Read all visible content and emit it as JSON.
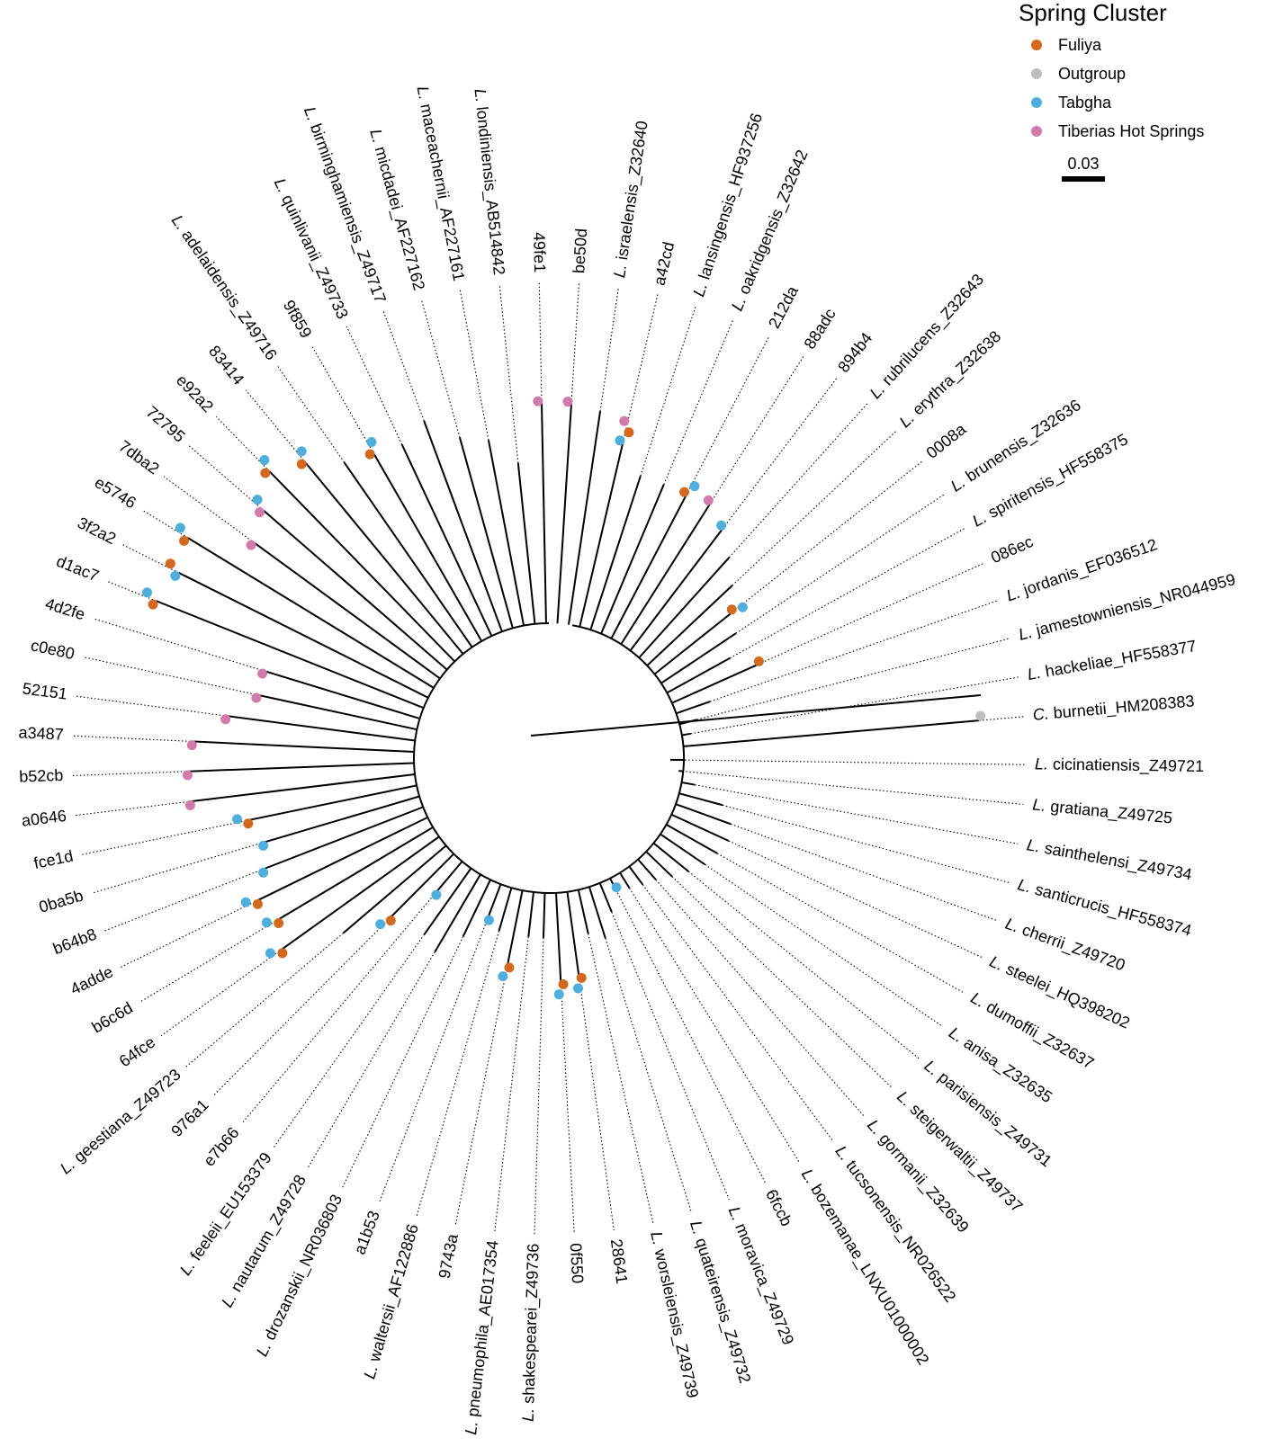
{
  "legend": {
    "title": "Spring Cluster",
    "items": [
      {
        "label": "Fuliya",
        "color": "#d2691e"
      },
      {
        "label": "Outgroup",
        "color": "#bebebe"
      },
      {
        "label": "Tabgha",
        "color": "#4faedc"
      },
      {
        "label": "Tiberias Hot Springs",
        "color": "#d17aac"
      }
    ]
  },
  "scale_bar": {
    "label": "0.03"
  },
  "tips": [
    {
      "genus": "C. ",
      "rest": "burnetii_HM208383",
      "clusters": [
        "Outgroup"
      ]
    },
    {
      "genus": "L. ",
      "rest": "hackeliae_HF558377",
      "clusters": []
    },
    {
      "genus": "L. ",
      "rest": "jamestowniensis_NR044959",
      "clusters": []
    },
    {
      "genus": "L. ",
      "rest": "jordanis_EF036512",
      "clusters": []
    },
    {
      "genus": "",
      "rest": "086ec",
      "clusters": [
        "Fuliya"
      ]
    },
    {
      "genus": "L. ",
      "rest": "spiritensis_HF558375",
      "clusters": []
    },
    {
      "genus": "L. ",
      "rest": "brunensis_Z32636",
      "clusters": []
    },
    {
      "genus": "",
      "rest": "0008a",
      "clusters": [
        "Fuliya",
        "Tabgha"
      ]
    },
    {
      "genus": "L. ",
      "rest": "erythra_Z32638",
      "clusters": []
    },
    {
      "genus": "L. ",
      "rest": "rubrilucens_Z32643",
      "clusters": []
    },
    {
      "genus": "",
      "rest": "894b4",
      "clusters": [
        "Tabgha"
      ]
    },
    {
      "genus": "",
      "rest": "88adc",
      "clusters": [
        "Tiberias Hot Springs"
      ]
    },
    {
      "genus": "",
      "rest": "212da",
      "clusters": [
        "Fuliya",
        "Tabgha"
      ]
    },
    {
      "genus": "L. ",
      "rest": "oakridgensis_Z32642",
      "clusters": []
    },
    {
      "genus": "L. ",
      "rest": "lansingensis_HF937256",
      "clusters": []
    },
    {
      "genus": "",
      "rest": "a42cd",
      "clusters": [
        "Tabgha",
        "Fuliya",
        "Tiberias Hot Springs"
      ]
    },
    {
      "genus": "L. ",
      "rest": "israelensis_Z32640",
      "clusters": []
    },
    {
      "genus": "",
      "rest": "be50d",
      "clusters": [
        "Tiberias Hot Springs"
      ]
    },
    {
      "genus": "",
      "rest": "49fe1",
      "clusters": [
        "Tiberias Hot Springs"
      ]
    },
    {
      "genus": "L. ",
      "rest": "londiniensis_AB514842",
      "clusters": []
    },
    {
      "genus": "L. ",
      "rest": "maceachernii_AF227161",
      "clusters": []
    },
    {
      "genus": "L. ",
      "rest": "micdadei_AF227162",
      "clusters": []
    },
    {
      "genus": "L. ",
      "rest": "birminghamiensis_Z49717",
      "clusters": []
    },
    {
      "genus": "L. ",
      "rest": "quinlivanii_Z49733",
      "clusters": []
    },
    {
      "genus": "",
      "rest": "9f859",
      "clusters": [
        "Fuliya",
        "Tabgha"
      ]
    },
    {
      "genus": "L. ",
      "rest": "adelaidensis_Z49716",
      "clusters": []
    },
    {
      "genus": "",
      "rest": "83414",
      "clusters": [
        "Fuliya",
        "Tabgha"
      ]
    },
    {
      "genus": "",
      "rest": "e92a2",
      "clusters": [
        "Fuliya",
        "Tabgha"
      ]
    },
    {
      "genus": "",
      "rest": "72795",
      "clusters": [
        "Tiberias Hot Springs",
        "Tabgha"
      ]
    },
    {
      "genus": "",
      "rest": "7dba2",
      "clusters": [
        "Tiberias Hot Springs"
      ]
    },
    {
      "genus": "",
      "rest": "e5746",
      "clusters": [
        "Fuliya",
        "Tabgha"
      ]
    },
    {
      "genus": "",
      "rest": "3f2a2",
      "clusters": [
        "Tabgha",
        "Fuliya"
      ]
    },
    {
      "genus": "",
      "rest": "d1ac7",
      "clusters": [
        "Fuliya",
        "Tabgha"
      ]
    },
    {
      "genus": "",
      "rest": "4d2fe",
      "clusters": [
        "Tiberias Hot Springs"
      ]
    },
    {
      "genus": "",
      "rest": "c0e80",
      "clusters": [
        "Tiberias Hot Springs"
      ]
    },
    {
      "genus": "",
      "rest": "52151",
      "clusters": [
        "Tiberias Hot Springs"
      ]
    },
    {
      "genus": "",
      "rest": "a3487",
      "clusters": [
        "Tiberias Hot Springs"
      ]
    },
    {
      "genus": "",
      "rest": "b52cb",
      "clusters": [
        "Tiberias Hot Springs"
      ]
    },
    {
      "genus": "",
      "rest": "a0646",
      "clusters": [
        "Tiberias Hot Springs"
      ]
    },
    {
      "genus": "",
      "rest": "fce1d",
      "clusters": [
        "Fuliya",
        "Tabgha"
      ]
    },
    {
      "genus": "",
      "rest": "0ba5b",
      "clusters": [
        "Tabgha"
      ]
    },
    {
      "genus": "",
      "rest": "b64b8",
      "clusters": [
        "Tabgha"
      ]
    },
    {
      "genus": "",
      "rest": "4adde",
      "clusters": [
        "Fuliya",
        "Tabgha"
      ]
    },
    {
      "genus": "",
      "rest": "b6c6d",
      "clusters": [
        "Fuliya",
        "Tabgha"
      ]
    },
    {
      "genus": "",
      "rest": "64fce",
      "clusters": [
        "Fuliya",
        "Tabgha"
      ]
    },
    {
      "genus": "L. ",
      "rest": "geestiana_Z49723",
      "clusters": []
    },
    {
      "genus": "",
      "rest": "976a1",
      "clusters": [
        "Fuliya",
        "Tabgha"
      ]
    },
    {
      "genus": "",
      "rest": "e7b66",
      "clusters": [
        "Tabgha"
      ]
    },
    {
      "genus": "L. ",
      "rest": "feeleii_EU153379",
      "clusters": []
    },
    {
      "genus": "L. ",
      "rest": "nautarum_Z49728",
      "clusters": []
    },
    {
      "genus": "L. ",
      "rest": "drozanskii_NR036803",
      "clusters": []
    },
    {
      "genus": "",
      "rest": "a1b53",
      "clusters": [
        "Tabgha"
      ]
    },
    {
      "genus": "L. ",
      "rest": "waltersii_AF122886",
      "clusters": []
    },
    {
      "genus": "",
      "rest": "9743a",
      "clusters": [
        "Fuliya",
        "Tabgha"
      ]
    },
    {
      "genus": "L. ",
      "rest": "pneumophila_AE017354",
      "clusters": []
    },
    {
      "genus": "L. ",
      "rest": "shakespearei_Z49736",
      "clusters": []
    },
    {
      "genus": "",
      "rest": "0f550",
      "clusters": [
        "Fuliya",
        "Tabgha"
      ]
    },
    {
      "genus": "",
      "rest": "28641",
      "clusters": [
        "Fuliya",
        "Tabgha"
      ]
    },
    {
      "genus": "L. ",
      "rest": "worsleiensis_Z49739",
      "clusters": []
    },
    {
      "genus": "L. ",
      "rest": "quateirensis_Z49732",
      "clusters": []
    },
    {
      "genus": "L. ",
      "rest": "moravica_Z49729",
      "clusters": []
    },
    {
      "genus": "",
      "rest": "6fccb",
      "clusters": [
        "Tabgha"
      ]
    },
    {
      "genus": "L. ",
      "rest": "bozemanae_LNXU01000002",
      "clusters": []
    },
    {
      "genus": "L. ",
      "rest": "tucsonensis_NR026522",
      "clusters": []
    },
    {
      "genus": "L. ",
      "rest": "gormanii_Z32639",
      "clusters": []
    },
    {
      "genus": "L. ",
      "rest": "steigerwaltii_Z49737",
      "clusters": []
    },
    {
      "genus": "L. ",
      "rest": "parisiensis_Z49731",
      "clusters": []
    },
    {
      "genus": "L. ",
      "rest": "anisa_Z32635",
      "clusters": []
    },
    {
      "genus": "L. ",
      "rest": "dumoffii_Z32637",
      "clusters": []
    },
    {
      "genus": "L. ",
      "rest": "steelei_HQ398202",
      "clusters": []
    },
    {
      "genus": "L. ",
      "rest": "cherrii_Z49720",
      "clusters": []
    },
    {
      "genus": "L. ",
      "rest": "santicrucis_HF558374",
      "clusters": []
    },
    {
      "genus": "L. ",
      "rest": "sainthelensi_Z49734",
      "clusters": []
    },
    {
      "genus": "L. ",
      "rest": "gratiana_Z49725",
      "clusters": []
    },
    {
      "genus": "L. ",
      "rest": "cicinatiensis_Z49721",
      "clusters": []
    }
  ]
}
